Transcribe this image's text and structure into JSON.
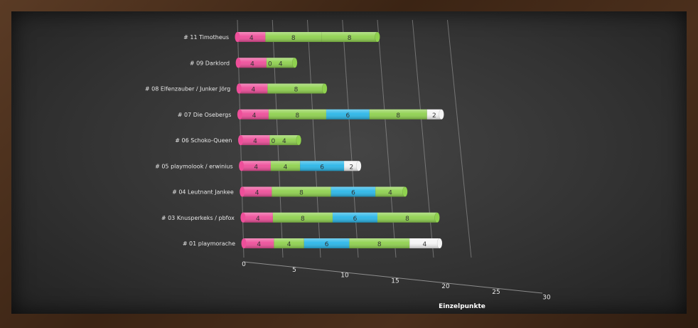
{
  "chart_data": {
    "type": "bar",
    "orientation": "horizontal",
    "stacked": true,
    "style": "3d-cylinder",
    "xlabel": "Einzelpunkte",
    "xlim": [
      0,
      30
    ],
    "xticks": [
      0,
      5,
      10,
      15,
      20,
      25,
      30
    ],
    "grid": true,
    "legend": "none",
    "categories": [
      "# 11 Timotheus",
      "# 09 Darklord",
      "# 08 Elfenzauber / Junker Jörg",
      "# 07 Die Osebergs",
      "# 06 Schoko-Queen",
      "# 05 playmolook / erwinius",
      "# 04 Leutnant Jankee",
      "# 03 Knusperkeks / pbfox",
      "# 01 playmorache"
    ],
    "series": [
      {
        "color": "#ee4f9a",
        "values": [
          4,
          4,
          4,
          4,
          4,
          4,
          4,
          4,
          4
        ]
      },
      {
        "color": "#8fd14f",
        "values": [
          8,
          0,
          8,
          8,
          0,
          4,
          8,
          8,
          4
        ]
      },
      {
        "color": "#2ab6e8",
        "values": [
          0,
          0,
          0,
          6,
          0,
          6,
          6,
          6,
          6
        ]
      },
      {
        "color": "#8fd14f",
        "values": [
          8,
          4,
          0,
          8,
          4,
          0,
          4,
          8,
          8
        ]
      },
      {
        "color": "#f4f4f4",
        "values": [
          0,
          0,
          0,
          2,
          0,
          2,
          0,
          0,
          4
        ]
      }
    ],
    "label_text_color": "#333333"
  }
}
